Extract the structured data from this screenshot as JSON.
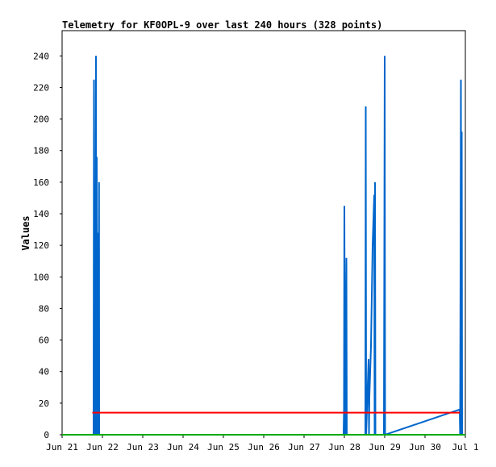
{
  "chart_data": {
    "type": "line",
    "title": "Telemetry for KF0OPL-9 over last 240 hours (328 points)",
    "ylabel": "Values",
    "xlabel": "",
    "x_tick_labels": [
      "Jun 21",
      "Jun 22",
      "Jun 23",
      "Jun 24",
      "Jun 25",
      "Jun 26",
      "Jun 27",
      "Jun 28",
      "Jun 29",
      "Jun 30",
      "Jul 1"
    ],
    "y_ticks": [
      0,
      20,
      40,
      60,
      80,
      100,
      120,
      140,
      160,
      180,
      200,
      220,
      240
    ],
    "xlim_days": [
      0,
      10
    ],
    "ylim": [
      0,
      256
    ],
    "grid": false,
    "legend": "none",
    "series": [
      {
        "color": "#0066cc",
        "points": [
          [
            0.78,
            0
          ],
          [
            0.79,
            225
          ],
          [
            0.8,
            16
          ],
          [
            0.81,
            80
          ],
          [
            0.82,
            0
          ],
          [
            0.83,
            112
          ],
          [
            0.84,
            240
          ],
          [
            0.845,
            0
          ],
          [
            0.86,
            176
          ],
          [
            0.87,
            32
          ],
          [
            0.88,
            0
          ],
          [
            0.89,
            80
          ],
          [
            0.9,
            128
          ],
          [
            0.91,
            0
          ],
          [
            0.915,
            160
          ],
          [
            0.92,
            0
          ],
          [
            6.98,
            0
          ],
          [
            6.99,
            16
          ],
          [
            7.0,
            145
          ],
          [
            7.01,
            56
          ],
          [
            7.02,
            0
          ],
          [
            7.05,
            112
          ],
          [
            7.06,
            0
          ],
          [
            7.52,
            0
          ],
          [
            7.53,
            208
          ],
          [
            7.54,
            0
          ],
          [
            7.6,
            48
          ],
          [
            7.61,
            0
          ],
          [
            7.62,
            24
          ],
          [
            7.64,
            40
          ],
          [
            7.66,
            56
          ],
          [
            7.68,
            88
          ],
          [
            7.7,
            120
          ],
          [
            7.72,
            136
          ],
          [
            7.74,
            152
          ],
          [
            7.75,
            0
          ],
          [
            7.76,
            160
          ],
          [
            7.77,
            0
          ],
          [
            7.98,
            0
          ],
          [
            7.99,
            112
          ],
          [
            8.0,
            240
          ],
          [
            8.01,
            0
          ],
          [
            9.86,
            16
          ],
          [
            9.87,
            0
          ],
          [
            9.88,
            104
          ],
          [
            9.89,
            225
          ],
          [
            9.9,
            0
          ],
          [
            9.91,
            192
          ],
          [
            9.92,
            0
          ]
        ]
      },
      {
        "color": "#ff0000",
        "points": [
          [
            0.75,
            14
          ],
          [
            9.86,
            14
          ]
        ]
      },
      {
        "color": "#00aa00",
        "points": [
          [
            0,
            0
          ],
          [
            10,
            0
          ]
        ]
      }
    ]
  }
}
